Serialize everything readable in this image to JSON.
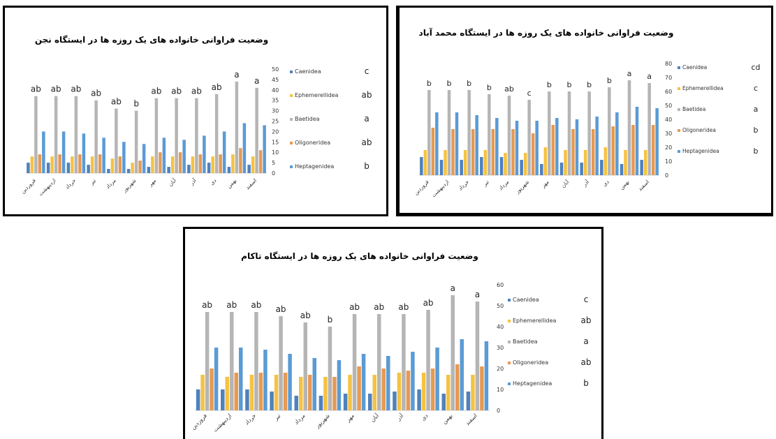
{
  "chart_data": [
    {
      "type": "bar",
      "title": "وضعیت فراوانی خانواده های  یک روزه ها در ایستگاه نجن",
      "categories": [
        "فروردین",
        "اردیبهشت",
        "خرداد",
        "تیر",
        "مرداد",
        "شهریور",
        "مهر",
        "آبان",
        "آذر",
        "دی",
        "بهمن",
        "اسفند"
      ],
      "series": [
        {
          "name": "Caenidea",
          "color": "#4f81bd",
          "group": "c",
          "values": [
            5,
            5,
            5,
            4,
            2,
            2,
            3,
            3,
            4,
            5,
            3,
            4
          ]
        },
        {
          "name": "Ephemerellidea",
          "color": "#f5c242",
          "group": "ab",
          "values": [
            8,
            8,
            8,
            8,
            7,
            5,
            8,
            8,
            8,
            8,
            9,
            8
          ]
        },
        {
          "name": "Baetidea",
          "color": "#b5b5b5",
          "group": "a",
          "values": [
            37,
            37,
            37,
            35,
            31,
            30,
            36,
            36,
            36,
            38,
            44,
            41
          ]
        },
        {
          "name": "Oligoneridea",
          "color": "#e59a53",
          "group": "ab",
          "values": [
            9,
            9,
            9,
            9,
            8,
            6,
            10,
            10,
            9,
            9,
            12,
            11
          ]
        },
        {
          "name": "Heptagenidea",
          "color": "#5b9bd5",
          "group": "b",
          "values": [
            20,
            20,
            19,
            17,
            15,
            14,
            17,
            16,
            18,
            20,
            24,
            23
          ]
        }
      ],
      "bar_letters": [
        "ab",
        "ab",
        "ab",
        "ab",
        "ab",
        "b",
        "ab",
        "ab",
        "ab",
        "ab",
        "a",
        "a"
      ],
      "ylim": [
        0,
        50
      ],
      "yticks": [
        0,
        5,
        10,
        15,
        20,
        25,
        30,
        35,
        40,
        45,
        50
      ],
      "legend_position": "right"
    },
    {
      "type": "bar",
      "title": "وضعیت فراوانی خانواده های  یک روزه ها  در ایستگاه محمد آباد",
      "categories": [
        "فروردین",
        "اردیبهشت",
        "خرداد",
        "تیر",
        "مرداد",
        "شهریور",
        "مهر",
        "آبان",
        "آذر",
        "دی",
        "بهمن",
        "اسفند"
      ],
      "series": [
        {
          "name": "Caenidea",
          "color": "#4f81bd",
          "group": "cd",
          "values": [
            13,
            11,
            11,
            13,
            13,
            11,
            8,
            9,
            9,
            11,
            8,
            11
          ]
        },
        {
          "name": "Ephemerellidea",
          "color": "#f5c242",
          "group": "c",
          "values": [
            18,
            18,
            18,
            18,
            16,
            16,
            20,
            18,
            18,
            20,
            18,
            18
          ]
        },
        {
          "name": "Baetidea",
          "color": "#b5b5b5",
          "group": "a",
          "values": [
            61,
            61,
            61,
            58,
            57,
            54,
            60,
            60,
            60,
            63,
            68,
            66
          ]
        },
        {
          "name": "Oligoneridea",
          "color": "#e59a53",
          "group": "b",
          "values": [
            34,
            33,
            33,
            33,
            33,
            30,
            36,
            33,
            33,
            35,
            36,
            36
          ]
        },
        {
          "name": "Heptagenidea",
          "color": "#5b9bd5",
          "group": "b",
          "values": [
            45,
            45,
            43,
            41,
            39,
            39,
            41,
            40,
            42,
            45,
            49,
            48
          ]
        }
      ],
      "bar_letters": [
        "b",
        "b",
        "b",
        "b",
        "ab",
        "c",
        "b",
        "b",
        "b",
        "b",
        "a",
        "a"
      ],
      "ylim": [
        0,
        80
      ],
      "yticks": [
        0,
        10,
        20,
        30,
        40,
        50,
        60,
        70,
        80
      ],
      "legend_position": "right"
    },
    {
      "type": "bar",
      "title": "وضعیت فراوانی خانواده های  یک روزه ها در ایستگاه تاکام",
      "categories": [
        "فروردین",
        "اردیبهشت",
        "خرداد",
        "تیر",
        "مرداد",
        "شهریور",
        "مهر",
        "آبان",
        "آذر",
        "دی",
        "بهمن",
        "اسفند"
      ],
      "series": [
        {
          "name": "Caenidea",
          "color": "#4f81bd",
          "group": "c",
          "values": [
            10,
            10,
            10,
            9,
            7,
            7,
            8,
            8,
            9,
            10,
            8,
            9
          ]
        },
        {
          "name": "Ephemerellidea",
          "color": "#f5c242",
          "group": "ab",
          "values": [
            17,
            16,
            17,
            17,
            16,
            16,
            17,
            17,
            18,
            18,
            17,
            17
          ]
        },
        {
          "name": "Baetidea",
          "color": "#b5b5b5",
          "group": "a",
          "values": [
            47,
            47,
            47,
            45,
            42,
            40,
            46,
            46,
            46,
            48,
            55,
            52
          ]
        },
        {
          "name": "Oligoneridea",
          "color": "#e59a53",
          "group": "ab",
          "values": [
            20,
            18,
            18,
            18,
            17,
            16,
            21,
            20,
            19,
            20,
            22,
            21
          ]
        },
        {
          "name": "Heptagenidea",
          "color": "#5b9bd5",
          "group": "b",
          "values": [
            30,
            30,
            29,
            27,
            25,
            24,
            27,
            26,
            28,
            30,
            34,
            33
          ]
        }
      ],
      "bar_letters": [
        "ab",
        "ab",
        "ab",
        "ab",
        "ab",
        "b",
        "ab",
        "ab",
        "ab",
        "ab",
        "a",
        "a"
      ],
      "ylim": [
        0,
        60
      ],
      "yticks": [
        0,
        10,
        20,
        30,
        40,
        50,
        60
      ],
      "legend_position": "right"
    }
  ]
}
